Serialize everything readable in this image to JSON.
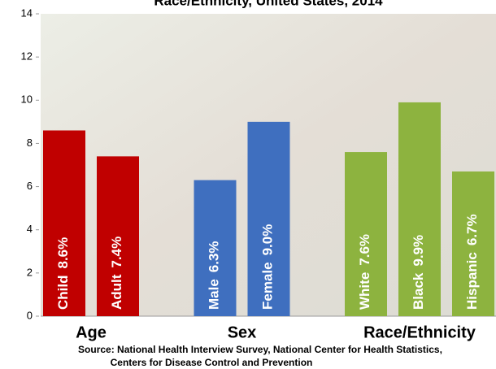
{
  "chart_data": {
    "type": "bar",
    "title": "Race/Ethnicity, United States, 2014",
    "series": [
      {
        "name": "Age",
        "color": "#c00000",
        "categories": [
          "Child",
          "Adult"
        ],
        "values": [
          8.6,
          7.4
        ],
        "value_labels": [
          "8.6%",
          "7.4%"
        ]
      },
      {
        "name": "Sex",
        "color": "#3f6fbf",
        "categories": [
          "Male",
          "Female"
        ],
        "values": [
          6.3,
          9.0
        ],
        "value_labels": [
          "6.3%",
          "9.0%"
        ]
      },
      {
        "name": "Race/Ethnicity",
        "color": "#8db33f",
        "categories": [
          "White",
          "Black",
          "Hispanic"
        ],
        "values": [
          7.6,
          9.9,
          6.7
        ],
        "value_labels": [
          "7.6%",
          "9.9%",
          "6.7%"
        ]
      }
    ],
    "ylim": [
      0,
      14
    ],
    "yticks": [
      0,
      2,
      4,
      6,
      8,
      10,
      12,
      14
    ],
    "source": [
      "Source: National Health Interview Survey, National Center for Health Statistics,",
      "Centers for Disease Control and Prevention"
    ]
  }
}
